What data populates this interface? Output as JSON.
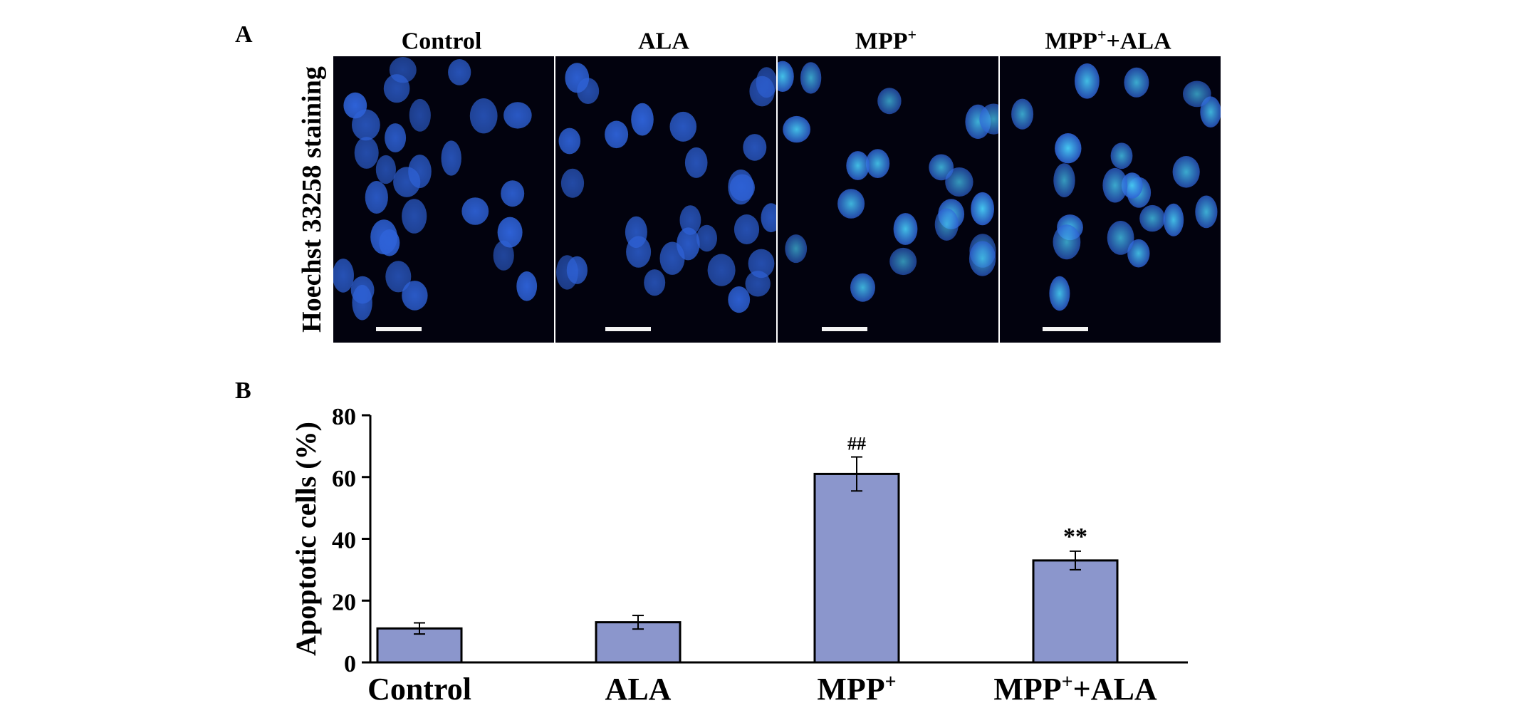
{
  "panels": {
    "a_label": "A",
    "b_label": "B"
  },
  "microscopy": {
    "stain_label": "Hoechst 33258 staining",
    "columns": [
      {
        "base": "Control",
        "sup": "",
        "tail": ""
      },
      {
        "base": "ALA",
        "sup": "",
        "tail": ""
      },
      {
        "base": "MPP",
        "sup": "+",
        "tail": ""
      },
      {
        "base": "MPP",
        "sup": "+",
        "tail": "+ALA"
      }
    ],
    "colors": {
      "background": "#02020e",
      "nucleus": "#2e62d8",
      "condensed_nucleus": "#46c8f0",
      "scale_bar": "#f4f4f4"
    }
  },
  "chart_data": {
    "type": "bar",
    "categories": [
      {
        "base": "Control",
        "sup": "",
        "tail": ""
      },
      {
        "base": "ALA",
        "sup": "",
        "tail": ""
      },
      {
        "base": "MPP",
        "sup": "+",
        "tail": ""
      },
      {
        "base": "MPP",
        "sup": "+",
        "tail": "+ALA"
      }
    ],
    "values": [
      11,
      13,
      61,
      33
    ],
    "errors": [
      1.8,
      2.2,
      5.5,
      3.0
    ],
    "annotations": [
      "",
      "",
      "##",
      "**"
    ],
    "ylabel": "Apoptotic cells (%)",
    "ylim": [
      0,
      80
    ],
    "yticks": [
      0,
      20,
      40,
      60,
      80
    ],
    "grid": false,
    "bar_color": "#8b96cc"
  }
}
